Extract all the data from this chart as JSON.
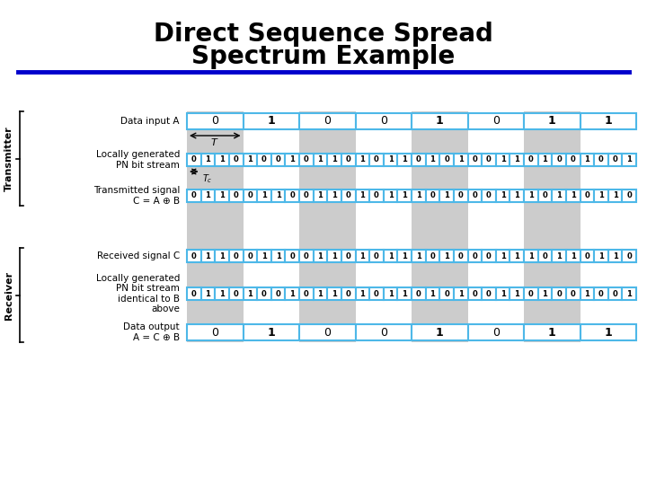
{
  "title_line1": "Direct Sequence Spread",
  "title_line2": "Spectrum Example",
  "title_fontsize": 20,
  "bg_color": "#ffffff",
  "line_color": "#4db8e8",
  "line_width": 1.5,
  "cell_shade": "#cccccc",
  "title_line_color": "#0000cc",
  "data_A": [
    0,
    1,
    0,
    0,
    1,
    0,
    1,
    1
  ],
  "pn_stream": [
    0,
    1,
    1,
    0,
    1,
    0,
    0,
    1,
    0,
    1,
    1,
    0,
    1,
    0,
    1,
    1,
    0,
    1,
    0,
    1,
    0,
    0,
    1,
    1,
    0,
    1,
    0,
    0,
    1,
    0,
    0,
    1
  ],
  "tx_signal": [
    0,
    1,
    1,
    0,
    0,
    1,
    1,
    0,
    0,
    1,
    1,
    0,
    1,
    0,
    1,
    1,
    1,
    0,
    1,
    0,
    0,
    0,
    1,
    1,
    1,
    0,
    1,
    1,
    0,
    1,
    1,
    0
  ],
  "rx_signal": [
    0,
    1,
    1,
    0,
    0,
    1,
    1,
    0,
    0,
    1,
    1,
    0,
    1,
    0,
    1,
    1,
    1,
    0,
    1,
    0,
    0,
    0,
    1,
    1,
    1,
    0,
    1,
    1,
    0,
    1,
    1,
    0
  ],
  "pn_stream2": [
    0,
    1,
    1,
    0,
    1,
    0,
    0,
    1,
    0,
    1,
    1,
    0,
    1,
    0,
    1,
    1,
    0,
    1,
    0,
    1,
    0,
    0,
    1,
    1,
    0,
    1,
    0,
    0,
    1,
    0,
    0,
    1
  ],
  "data_out": [
    0,
    1,
    0,
    0,
    1,
    0,
    1,
    1
  ],
  "shaded_bits": [
    0,
    2,
    4,
    6
  ],
  "n_data": 8,
  "n_pn": 32,
  "fig_w": 7.2,
  "fig_h": 5.4,
  "dpi": 100
}
